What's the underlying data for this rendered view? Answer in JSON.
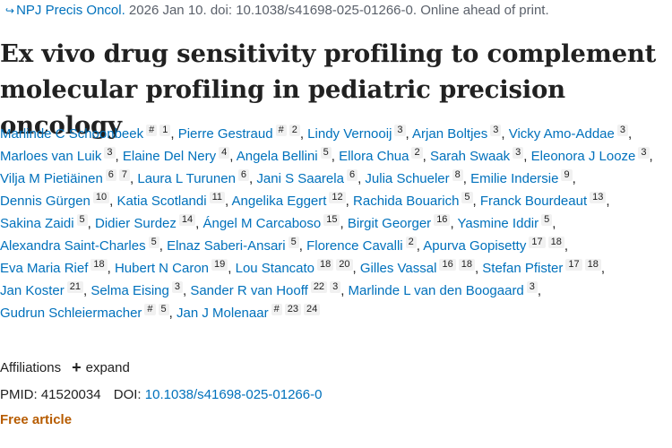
{
  "citation": {
    "journal": "NPJ Precis Oncol.",
    "details": " 2026 Jan 10. doi: 10.1038/s41698-025-01266-0. Online ahead of print."
  },
  "title": "Ex vivo drug sensitivity profiling to complement molecular profiling in pediatric precision oncology",
  "authors": [
    {
      "name": "Marlinde C Schoonbeek",
      "sups": [
        "#",
        "1"
      ]
    },
    {
      "name": "Pierre Gestraud",
      "sups": [
        "#",
        "2"
      ]
    },
    {
      "name": "Lindy Vernooij",
      "sups": [
        "3"
      ]
    },
    {
      "name": "Arjan Boltjes",
      "sups": [
        "3"
      ]
    },
    {
      "name": "Vicky Amo-Addae",
      "sups": [
        "3"
      ]
    },
    {
      "name": "Marloes van Luik",
      "sups": [
        "3"
      ]
    },
    {
      "name": "Elaine Del Nery",
      "sups": [
        "4"
      ]
    },
    {
      "name": "Angela Bellini",
      "sups": [
        "5"
      ]
    },
    {
      "name": "Ellora Chua",
      "sups": [
        "2"
      ]
    },
    {
      "name": "Sarah Swaak",
      "sups": [
        "3"
      ]
    },
    {
      "name": "Eleonora J Looze",
      "sups": [
        "3"
      ]
    },
    {
      "name": "Vilja M Pietiäinen",
      "sups": [
        "6",
        "7"
      ]
    },
    {
      "name": "Laura L Turunen",
      "sups": [
        "6"
      ]
    },
    {
      "name": "Jani S Saarela",
      "sups": [
        "6"
      ]
    },
    {
      "name": "Julia Schueler",
      "sups": [
        "8"
      ]
    },
    {
      "name": "Emilie Indersie",
      "sups": [
        "9"
      ]
    },
    {
      "name": "Dennis Gürgen",
      "sups": [
        "10"
      ]
    },
    {
      "name": "Katia Scotlandi",
      "sups": [
        "11"
      ]
    },
    {
      "name": "Angelika Eggert",
      "sups": [
        "12"
      ]
    },
    {
      "name": "Rachida Bouarich",
      "sups": [
        "5"
      ]
    },
    {
      "name": "Franck Bourdeaut",
      "sups": [
        "13"
      ]
    },
    {
      "name": "Sakina Zaidi",
      "sups": [
        "5"
      ]
    },
    {
      "name": "Didier Surdez",
      "sups": [
        "14"
      ]
    },
    {
      "name": "Ángel M Carcaboso",
      "sups": [
        "15"
      ]
    },
    {
      "name": "Birgit Georger",
      "sups": [
        "16"
      ]
    },
    {
      "name": "Yasmine Iddir",
      "sups": [
        "5"
      ]
    },
    {
      "name": "Alexandra Saint-Charles",
      "sups": [
        "5"
      ]
    },
    {
      "name": "Elnaz Saberi-Ansari",
      "sups": [
        "5"
      ]
    },
    {
      "name": "Florence Cavalli",
      "sups": [
        "2"
      ]
    },
    {
      "name": "Apurva Gopisetty",
      "sups": [
        "17",
        "18"
      ]
    },
    {
      "name": "Eva Maria Rief",
      "sups": [
        "18"
      ]
    },
    {
      "name": "Hubert N Caron",
      "sups": [
        "19"
      ]
    },
    {
      "name": "Lou Stancato",
      "sups": [
        "18",
        "20"
      ]
    },
    {
      "name": "Gilles Vassal",
      "sups": [
        "16",
        "18"
      ]
    },
    {
      "name": "Stefan Pfister",
      "sups": [
        "17",
        "18"
      ]
    },
    {
      "name": "Jan Koster",
      "sups": [
        "21"
      ]
    },
    {
      "name": "Selma Eising",
      "sups": [
        "3"
      ]
    },
    {
      "name": "Sander R van Hooff",
      "sups": [
        "22",
        "3"
      ]
    },
    {
      "name": "Marlinde L van den Boogaard",
      "sups": [
        "3"
      ]
    },
    {
      "name": "Gudrun Schleiermacher",
      "sups": [
        "#",
        "5"
      ]
    },
    {
      "name": "Jan J Molenaar",
      "sups": [
        "#",
        "23",
        "24"
      ]
    }
  ],
  "affiliations": {
    "label": "Affiliations",
    "expand_label": "expand"
  },
  "pmid": {
    "label": "PMID: ",
    "value": "41520034"
  },
  "doi": {
    "label": "DOI: ",
    "value": "10.1038/s41698-025-01266-0"
  },
  "free_article": "Free article"
}
